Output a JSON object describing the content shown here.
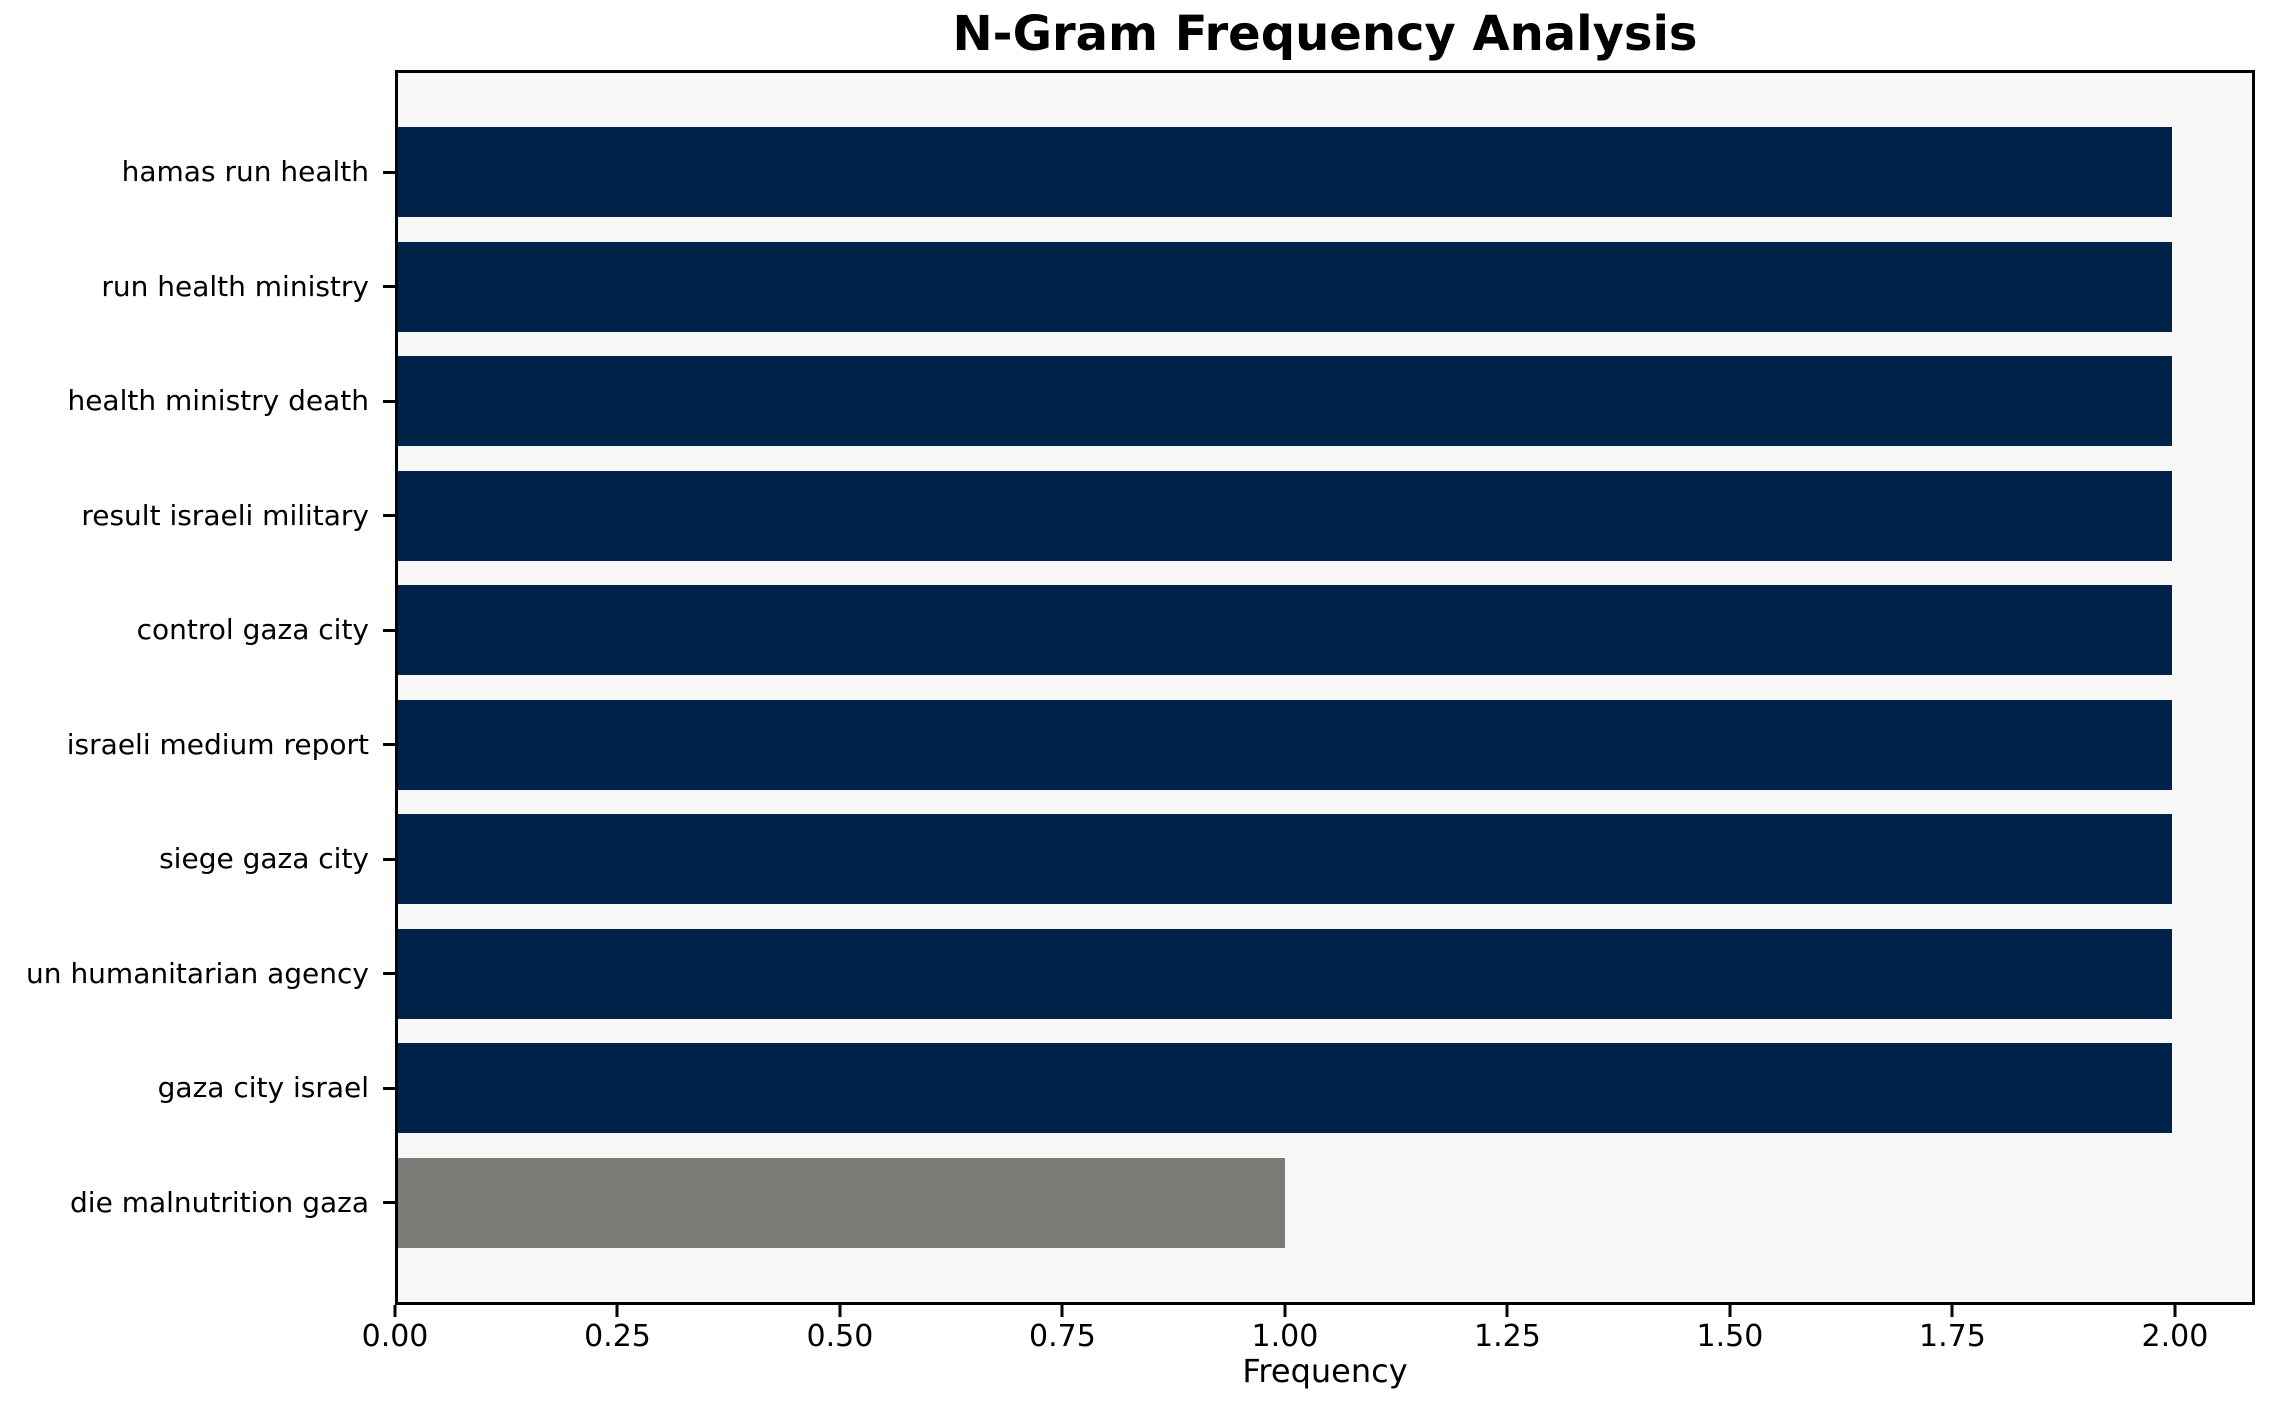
{
  "figure": {
    "title": "N-Gram Frequency Analysis",
    "xlabel": "Frequency"
  },
  "chart_data": {
    "type": "bar",
    "orientation": "horizontal",
    "title": "N-Gram Frequency Analysis",
    "xlabel": "Frequency",
    "ylabel": "",
    "categories": [
      "hamas run health",
      "run health ministry",
      "health ministry death",
      "result israeli military",
      "control gaza city",
      "israeli medium report",
      "siege gaza city",
      "un humanitarian agency",
      "gaza city israel",
      "die malnutrition gaza"
    ],
    "values": [
      2,
      2,
      2,
      2,
      2,
      2,
      2,
      2,
      2,
      1
    ],
    "bar_colors": [
      "#012349",
      "#012349",
      "#012349",
      "#012349",
      "#012349",
      "#012349",
      "#012349",
      "#012349",
      "#012349",
      "#7b7a77"
    ],
    "xlim": [
      0,
      2.09
    ],
    "xtick_values": [
      0,
      0.25,
      0.5,
      0.75,
      1.0,
      1.25,
      1.5,
      1.75,
      2.0
    ],
    "xtick_labels": [
      "0.00",
      "0.25",
      "0.50",
      "0.75",
      "1.00",
      "1.25",
      "1.50",
      "1.75",
      "2.00"
    ],
    "grid": false,
    "legend": null,
    "colors": {
      "plot_background": "#f7f7f7",
      "figure_background": "#ffffff",
      "spine": "#000000",
      "bar_primary": "#012349",
      "bar_secondary": "#7b7a77"
    }
  }
}
